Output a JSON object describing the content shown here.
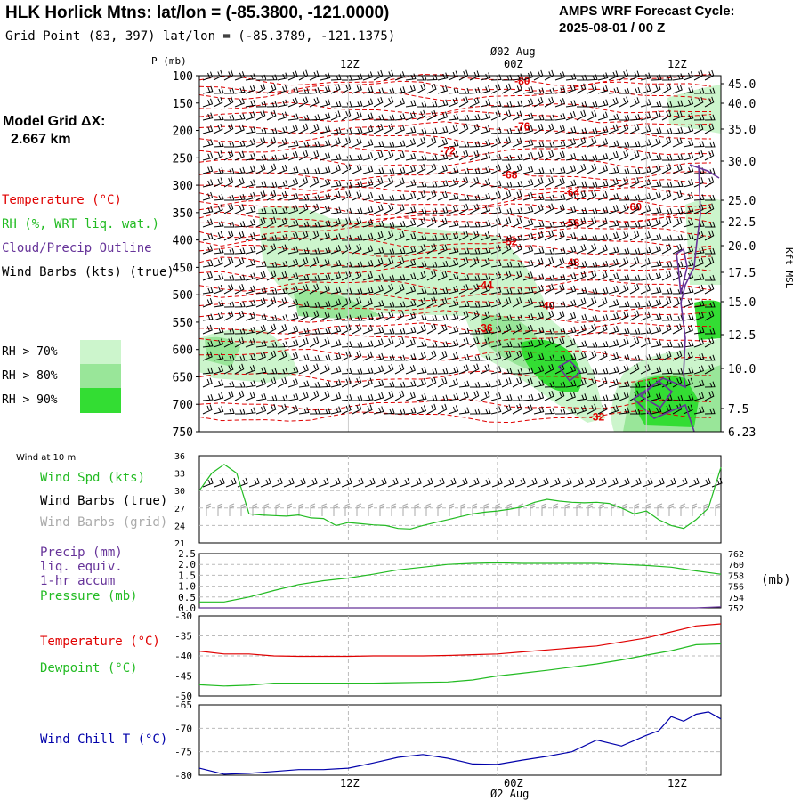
{
  "header": {
    "title": "HLK Horlick Mtns:  lat/lon = (-85.3800, -121.0000)",
    "grid_point": "Grid Point (83, 397) lat/lon = (-85.3789, -121.1375)",
    "cycle_line1": "AMPS WRF Forecast Cycle:",
    "cycle_line2": "2025-08-01 / 00  Z"
  },
  "model_grid": {
    "line1": "Model Grid ΔX:",
    "line2": "2.667 km"
  },
  "legend": {
    "temperature": "Temperature (°C)",
    "rh": "RH (%, WRT liq. wat.)",
    "cloud": "Cloud/Precip Outline",
    "wind": "Wind Barbs (kts) (true)",
    "rh70": "RH > 70%",
    "rh80": "RH > 80%",
    "rh90": "RH > 90%"
  },
  "colors": {
    "temperature": "#e00000",
    "rh70": "#ccf5cc",
    "rh80": "#99e699",
    "rh90": "#33dd33",
    "rh_green": "#22bb22",
    "cloud": "#663399",
    "wind": "#000000",
    "wind_grid": "#aaaaaa",
    "windchill": "#0000aa",
    "grid": "#999999"
  },
  "top_time_axis": {
    "date_label": "Ø02 Aug",
    "ticks": [
      "12Z",
      "00Z",
      "12Z"
    ]
  },
  "bottom_time_axis": {
    "date_label": "Ø2 Aug",
    "ticks": [
      "12Z",
      "00Z",
      "12Z"
    ]
  },
  "surface_labels": {
    "wind_at_10m": "Wind at 10 m",
    "wind_spd": "Wind Spd (kts)",
    "barbs_true": "Wind Barbs (true)",
    "barbs_grid": "Wind Barbs (grid)",
    "precip1": "Precip (mm)",
    "precip2": "liq. equiv.",
    "precip3": "1-hr accum",
    "pressure": "Pressure (mb)",
    "pressure_unit": "(mb)",
    "temperature": "Temperature (°C)",
    "dewpoint": "Dewpoint (°C)",
    "windchill": "Wind Chill T (°C)"
  },
  "chart_data": [
    {
      "type": "contour",
      "panel": "upper-air cross-section",
      "ylabel": "P (mb)",
      "y2label": "Kft MSL",
      "y_ticks": [
        100,
        150,
        200,
        250,
        300,
        350,
        400,
        450,
        500,
        550,
        600,
        650,
        700,
        750
      ],
      "y2_ticks": [
        "45.0",
        "40.0",
        "35.0",
        "30.0",
        "25.0",
        "22.5",
        "20.0",
        "17.5",
        "15.0",
        "12.5",
        "10.0",
        "7.5",
        "6.23"
      ],
      "temperature_contour_labels": [
        {
          "value": -80,
          "hour": 26,
          "p": 110
        },
        {
          "value": -76,
          "hour": 26,
          "p": 193
        },
        {
          "value": -72,
          "hour": 20,
          "p": 237
        },
        {
          "value": -68,
          "hour": 25,
          "p": 281
        },
        {
          "value": -64,
          "hour": 30,
          "p": 314
        },
        {
          "value": -60,
          "hour": 35,
          "p": 340
        },
        {
          "value": -56,
          "hour": 30,
          "p": 369
        },
        {
          "value": -52,
          "hour": 25,
          "p": 403
        },
        {
          "value": -48,
          "hour": 30,
          "p": 441
        },
        {
          "value": -44,
          "hour": 23,
          "p": 483
        },
        {
          "value": -40,
          "hour": 28,
          "p": 520
        },
        {
          "value": -36,
          "hour": 23,
          "p": 561
        },
        {
          "value": -32,
          "hour": 32,
          "p": 723
        }
      ],
      "hours_range": [
        0,
        42
      ],
      "pressure_range": [
        100,
        750
      ]
    },
    {
      "type": "line",
      "panel": "wind at 10 m",
      "ylim": [
        21,
        36
      ],
      "y_ticks": [
        21,
        24,
        27,
        30,
        33,
        36
      ],
      "x_hours": [
        0,
        1,
        2,
        3,
        4,
        5,
        6,
        7,
        8,
        9,
        10,
        11,
        12,
        13,
        14,
        15,
        16,
        17,
        18,
        19,
        20,
        21,
        22,
        23,
        24,
        25,
        26,
        27,
        28,
        29,
        30,
        31,
        32,
        33,
        34,
        35,
        36,
        37,
        38,
        39,
        40,
        41,
        42
      ],
      "series": [
        {
          "name": "Wind Spd (kts)",
          "values": [
            30,
            33,
            34.5,
            33,
            26,
            25.8,
            25.7,
            25.6,
            25.8,
            25.3,
            25.2,
            24,
            24.5,
            24.3,
            24.1,
            24,
            23.5,
            23.4,
            24,
            24.5,
            25,
            25.5,
            26,
            26.3,
            26.5,
            26.8,
            27.2,
            28,
            28.5,
            28.2,
            28,
            27.9,
            28,
            27.8,
            27,
            26,
            26.5,
            25,
            24,
            23.5,
            25,
            27,
            34
          ]
        }
      ]
    },
    {
      "type": "line",
      "panel": "precip and pressure",
      "y_left_ticks": [
        "0.0",
        "0.5",
        "1.0",
        "1.5",
        "2.0",
        "2.5"
      ],
      "y_right_ticks": [
        762,
        760,
        758,
        756,
        754,
        752
      ],
      "ylim_left": [
        0,
        2.5
      ],
      "ylim_right": [
        752,
        762
      ],
      "x_hours": [
        0,
        2,
        4,
        6,
        8,
        10,
        12,
        14,
        16,
        18,
        20,
        22,
        24,
        26,
        28,
        30,
        32,
        34,
        36,
        38,
        40,
        42
      ],
      "series": [
        {
          "name": "Pressure (mb)",
          "axis": "right",
          "values": [
            753.1,
            753.1,
            754,
            755.2,
            756.3,
            757,
            757.5,
            758.2,
            759,
            759.5,
            760,
            760.2,
            760.3,
            760.2,
            760.2,
            760.2,
            760.2,
            760,
            759.8,
            759.5,
            758.8,
            758.2
          ]
        },
        {
          "name": "Precip (mm)",
          "axis": "left",
          "values": [
            0,
            0,
            0,
            0,
            0,
            0,
            0,
            0,
            0,
            0,
            0,
            0,
            0,
            0,
            0,
            0,
            0,
            0,
            0,
            0,
            0,
            0.05
          ]
        }
      ]
    },
    {
      "type": "line",
      "panel": "temperature and dewpoint",
      "ylim": [
        -50,
        -30
      ],
      "y_ticks": [
        -30,
        -35,
        -40,
        -45,
        -50
      ],
      "x_hours": [
        0,
        2,
        4,
        6,
        8,
        10,
        12,
        14,
        16,
        18,
        20,
        22,
        24,
        26,
        28,
        30,
        32,
        34,
        36,
        38,
        40,
        42
      ],
      "series": [
        {
          "name": "Temperature (°C)",
          "values": [
            -38.8,
            -39.5,
            -39.5,
            -40,
            -40.1,
            -40.1,
            -40.1,
            -40,
            -40,
            -40,
            -39.9,
            -39.7,
            -39.5,
            -39,
            -38.5,
            -38,
            -37.5,
            -36.5,
            -35.5,
            -34,
            -32.5,
            -32
          ]
        },
        {
          "name": "Dewpoint (°C)",
          "values": [
            -47.2,
            -47.5,
            -47.3,
            -46.8,
            -46.8,
            -46.8,
            -46.8,
            -46.8,
            -46.7,
            -46.6,
            -46.5,
            -46,
            -45,
            -44.3,
            -43.6,
            -42.8,
            -42,
            -41,
            -39.8,
            -38.7,
            -37.2,
            -37
          ]
        }
      ]
    },
    {
      "type": "line",
      "panel": "wind chill",
      "ylim": [
        -80,
        -65
      ],
      "y_ticks": [
        -65,
        -70,
        -75,
        -80
      ],
      "x_hours": [
        0,
        2,
        4,
        6,
        8,
        10,
        12,
        14,
        16,
        18,
        20,
        22,
        24,
        26,
        28,
        30,
        32,
        34,
        36,
        37,
        38,
        39,
        40,
        41,
        42
      ],
      "series": [
        {
          "name": "Wind Chill T (°C)",
          "values": [
            -78.5,
            -79.8,
            -79.6,
            -79.2,
            -78.8,
            -78.8,
            -78.5,
            -77.4,
            -76.2,
            -75.6,
            -76.4,
            -77.6,
            -77.7,
            -76.8,
            -76,
            -75,
            -72.5,
            -73.8,
            -71.5,
            -70.5,
            -67.5,
            -68.5,
            -67,
            -66.5,
            -68
          ]
        }
      ]
    }
  ]
}
